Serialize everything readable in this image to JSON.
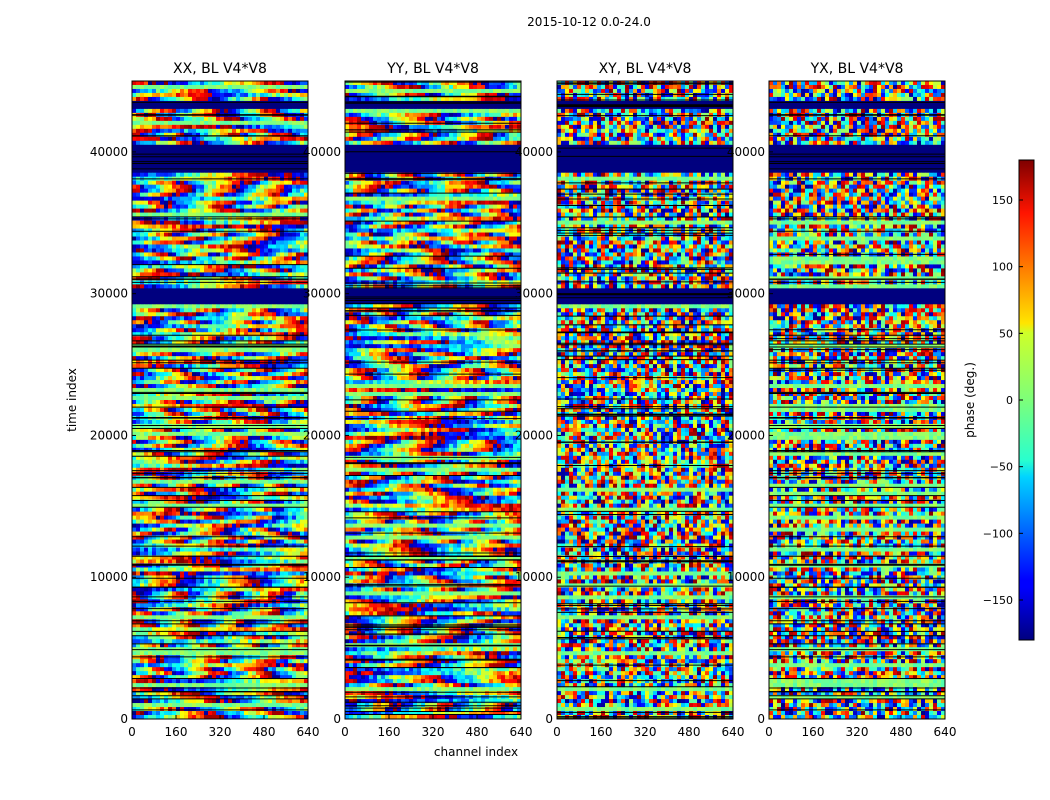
{
  "figure": {
    "suptitle": "2015-10-12 0.0-24.0",
    "xlabel": "channel index",
    "ylabel": "time index",
    "colorbar_label": "phase (deg.)",
    "colormap": "jet"
  },
  "chart_data": [
    {
      "type": "heatmap",
      "title": "XX, BL V4*V8",
      "xlim": [
        0,
        640
      ],
      "ylim": [
        0,
        45000
      ],
      "xticks": [
        "0",
        "160",
        "320",
        "480",
        "640"
      ],
      "yticks": [
        "0",
        "10000",
        "20000",
        "30000",
        "40000"
      ],
      "data_gaps": [
        [
          29200,
          30400
        ],
        [
          38600,
          40500
        ],
        [
          43100,
          43700
        ]
      ],
      "phase_pattern": "ramp"
    },
    {
      "type": "heatmap",
      "title": "YY, BL V4*V8",
      "xlim": [
        0,
        640
      ],
      "ylim": [
        0,
        45000
      ],
      "xticks": [
        "0",
        "160",
        "320",
        "480",
        "640"
      ],
      "yticks": [
        "0",
        "10000",
        "20000",
        "30000",
        "40000"
      ],
      "data_gaps": [
        [
          29200,
          30400
        ],
        [
          38600,
          40500
        ],
        [
          43100,
          43700
        ]
      ],
      "phase_pattern": "ramp"
    },
    {
      "type": "heatmap",
      "title": "XY, BL V4*V8",
      "xlim": [
        0,
        640
      ],
      "ylim": [
        0,
        45000
      ],
      "xticks": [
        "0",
        "160",
        "320",
        "480",
        "640"
      ],
      "yticks": [
        "0",
        "10000",
        "20000",
        "30000",
        "40000"
      ],
      "data_gaps": [
        [
          29200,
          30400
        ],
        [
          38600,
          40500
        ],
        [
          43100,
          43700
        ]
      ],
      "phase_pattern": "noisy"
    },
    {
      "type": "heatmap",
      "title": "YX, BL V4*V8",
      "xlim": [
        0,
        640
      ],
      "ylim": [
        0,
        45000
      ],
      "xticks": [
        "0",
        "160",
        "320",
        "480",
        "640"
      ],
      "yticks": [
        "0",
        "10000",
        "20000",
        "30000",
        "40000"
      ],
      "data_gaps": [
        [
          29200,
          30400
        ],
        [
          38600,
          40500
        ],
        [
          43100,
          43700
        ]
      ],
      "phase_pattern": "noisy"
    }
  ],
  "colorbar": {
    "range": [
      -180,
      180
    ],
    "ticks": [
      "150",
      "100",
      "50",
      "0",
      "−50",
      "−100",
      "−150"
    ],
    "tick_values": [
      150,
      100,
      50,
      0,
      -50,
      -100,
      -150
    ]
  }
}
